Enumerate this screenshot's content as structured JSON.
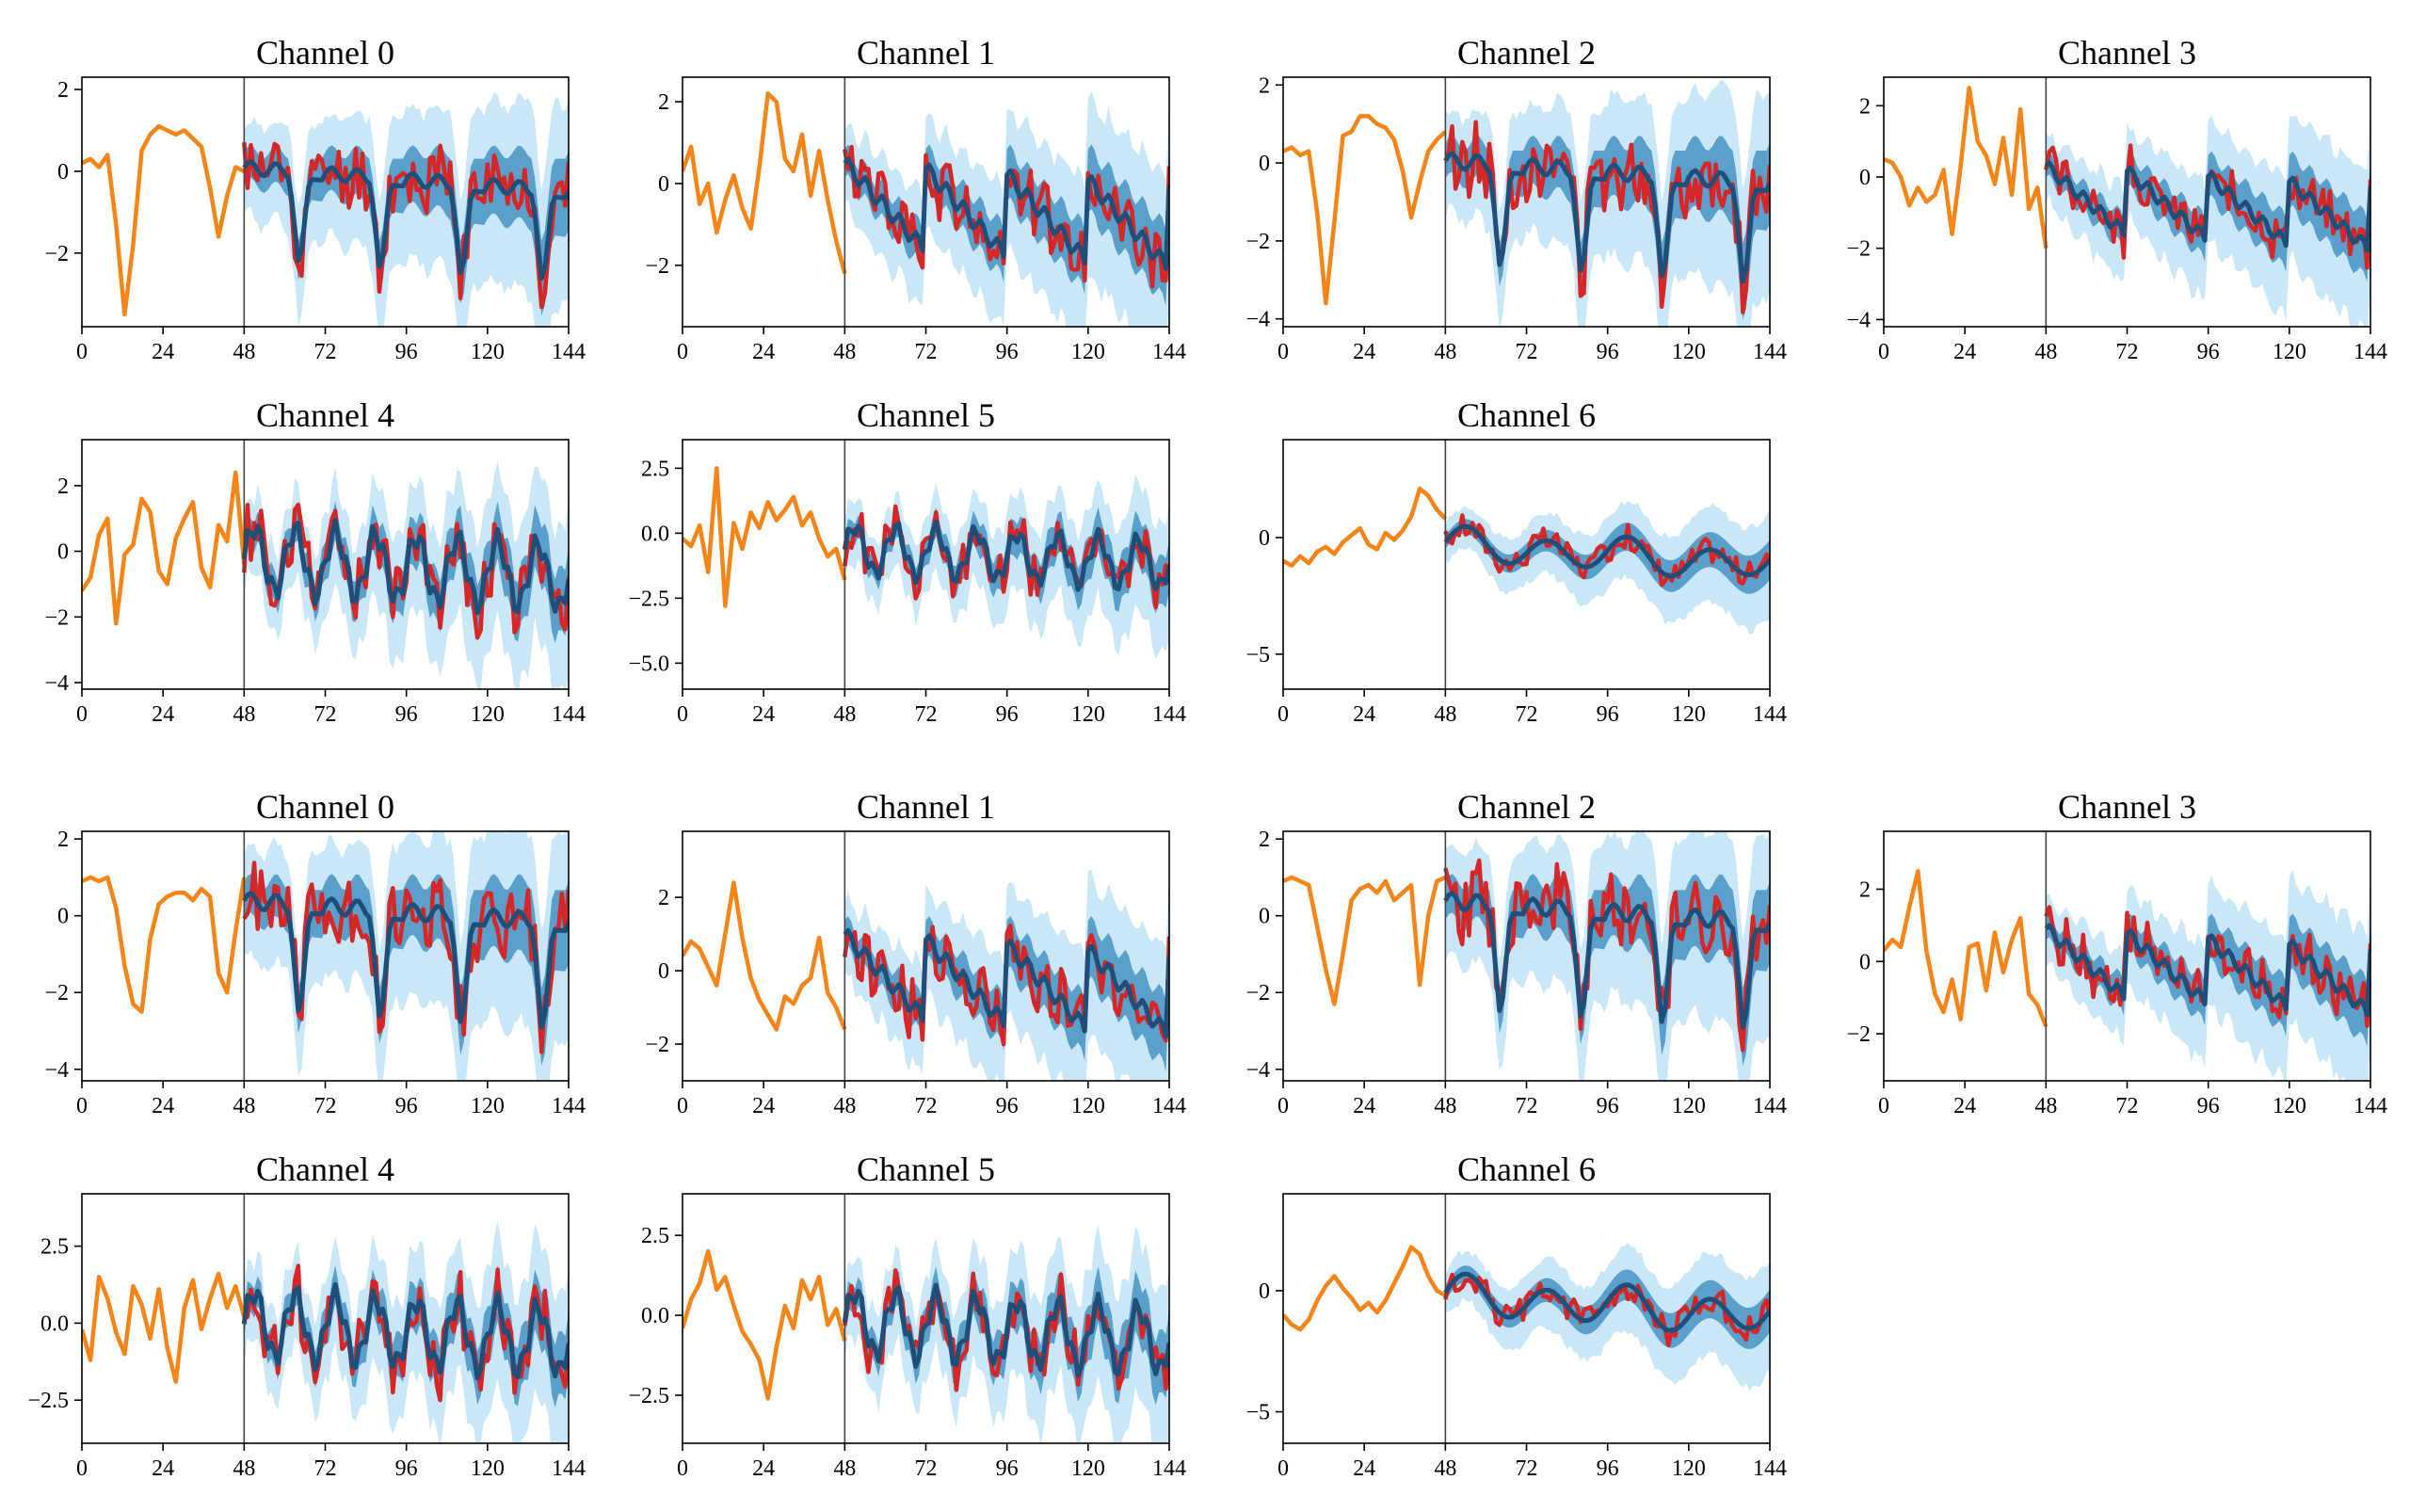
{
  "figure": {
    "description_text": "",
    "colors": {
      "history": "#f58518",
      "ground_truth": "#d62728",
      "median": "#1f4e79",
      "band_50": "#5b9fcb",
      "band_90": "#c9e7f6",
      "divider": "#444444"
    },
    "x_ticks": [
      0,
      24,
      48,
      72,
      96,
      120,
      144
    ],
    "history_end": 48
  },
  "chart_data": [
    {
      "type": "line",
      "title": "Channel 0",
      "group": 1,
      "xlim": [
        0,
        144
      ],
      "ylim": [
        -3.8,
        2.3
      ],
      "yticks": [
        -2,
        0,
        2
      ],
      "ytick_labels": [
        "−2",
        "0",
        "2"
      ],
      "seed": 11,
      "shape": "square",
      "amp": 1.1,
      "offset": -0.3,
      "hist": [
        0.2,
        0.3,
        0.1,
        0.4,
        -1.3,
        -3.5,
        -1.8,
        0.5,
        0.9,
        1.1,
        1.0,
        0.9,
        1.0,
        0.8,
        0.6,
        -0.4,
        -1.6,
        -0.6,
        0.1,
        0.0
      ]
    },
    {
      "type": "line",
      "title": "Channel 1",
      "group": 1,
      "xlim": [
        0,
        144
      ],
      "ylim": [
        -3.5,
        2.6
      ],
      "yticks": [
        -2,
        0,
        2
      ],
      "ytick_labels": [
        "−2",
        "0",
        "2"
      ],
      "seed": 12,
      "shape": "saw",
      "amp": 1.0,
      "offset": -0.4,
      "hist": [
        0.3,
        0.9,
        -0.5,
        0.0,
        -1.2,
        -0.4,
        0.2,
        -0.6,
        -1.1,
        0.4,
        2.2,
        2.0,
        0.6,
        0.3,
        1.2,
        -0.3,
        0.8,
        -0.4,
        -1.4,
        -2.2
      ]
    },
    {
      "type": "line",
      "title": "Channel 2",
      "group": 1,
      "xlim": [
        0,
        144
      ],
      "ylim": [
        -4.2,
        2.2
      ],
      "yticks": [
        -4,
        -2,
        0,
        2
      ],
      "ytick_labels": [
        "−4",
        "−2",
        "0",
        "2"
      ],
      "seed": 13,
      "shape": "square",
      "amp": 1.3,
      "offset": -0.4,
      "hist": [
        0.3,
        0.4,
        0.2,
        0.3,
        -1.3,
        -3.6,
        -1.5,
        0.7,
        0.8,
        1.2,
        1.2,
        1.0,
        0.9,
        0.6,
        -0.2,
        -1.4,
        -0.5,
        0.3,
        0.6,
        0.8
      ]
    },
    {
      "type": "line",
      "title": "Channel 3",
      "group": 1,
      "xlim": [
        0,
        144
      ],
      "ylim": [
        -4.2,
        2.8
      ],
      "yticks": [
        -4,
        -2,
        0,
        2
      ],
      "ytick_labels": [
        "−4",
        "−2",
        "0",
        "2"
      ],
      "seed": 14,
      "shape": "saw",
      "amp": 0.9,
      "offset": -0.5,
      "hist": [
        0.5,
        0.4,
        0.0,
        -0.8,
        -0.3,
        -0.7,
        -0.5,
        0.2,
        -1.6,
        0.3,
        2.5,
        1.0,
        0.6,
        -0.2,
        1.1,
        -0.5,
        1.9,
        -0.9,
        -0.3,
        -2.0
      ]
    },
    {
      "type": "line",
      "title": "Channel 4",
      "group": 1,
      "xlim": [
        0,
        144
      ],
      "ylim": [
        -4.2,
        3.4
      ],
      "yticks": [
        -4,
        -2,
        0,
        2
      ],
      "ytick_labels": [
        "−4",
        "−2",
        "0",
        "2"
      ],
      "seed": 15,
      "shape": "spiky",
      "amp": 1.2,
      "offset": -0.2,
      "hist": [
        -1.2,
        -0.8,
        0.5,
        1.0,
        -2.2,
        -0.1,
        0.2,
        1.6,
        1.2,
        -0.6,
        -1.0,
        0.4,
        1.0,
        1.5,
        -0.5,
        -1.1,
        0.8,
        0.3,
        2.4,
        -0.4
      ]
    },
    {
      "type": "line",
      "title": "Channel 5",
      "group": 1,
      "xlim": [
        0,
        144
      ],
      "ylim": [
        -6.0,
        3.6
      ],
      "yticks": [
        -5.0,
        -2.5,
        0.0,
        2.5
      ],
      "ytick_labels": [
        "−5.0",
        "−2.5",
        "0.0",
        "2.5"
      ],
      "seed": 16,
      "shape": "spiky",
      "amp": 1.1,
      "offset": -0.6,
      "hist": [
        -0.2,
        -0.5,
        0.3,
        -1.5,
        2.5,
        -2.8,
        0.4,
        -0.6,
        0.8,
        0.2,
        1.2,
        0.5,
        0.9,
        1.4,
        0.3,
        0.8,
        -0.2,
        -0.9,
        -0.6,
        -1.8
      ]
    },
    {
      "type": "line",
      "title": "Channel 6",
      "group": 1,
      "xlim": [
        0,
        144
      ],
      "ylim": [
        -6.5,
        4.2
      ],
      "yticks": [
        -5,
        0
      ],
      "ytick_labels": [
        "−5",
        "0"
      ],
      "seed": 17,
      "shape": "smooth",
      "amp": 0.8,
      "offset": -0.3,
      "hist": [
        -1.0,
        -1.2,
        -0.8,
        -1.1,
        -0.6,
        -0.4,
        -0.7,
        -0.2,
        0.1,
        0.4,
        -0.3,
        -0.5,
        0.2,
        -0.1,
        0.3,
        0.9,
        2.1,
        1.8,
        1.2,
        0.8
      ]
    },
    {
      "type": "line",
      "title": "Channel 0",
      "group": 2,
      "xlim": [
        0,
        144
      ],
      "ylim": [
        -4.3,
        2.2
      ],
      "yticks": [
        -4,
        -2,
        0,
        2
      ],
      "ytick_labels": [
        "−4",
        "−2",
        "0",
        "2"
      ],
      "seed": 21,
      "shape": "square",
      "amp": 1.4,
      "offset": -0.1,
      "hist": [
        0.9,
        1.0,
        0.9,
        1.0,
        0.2,
        -1.3,
        -2.3,
        -2.5,
        -0.6,
        0.3,
        0.5,
        0.6,
        0.6,
        0.4,
        0.7,
        0.5,
        -1.5,
        -2.0,
        -0.4,
        1.0
      ]
    },
    {
      "type": "line",
      "title": "Channel 1",
      "group": 2,
      "xlim": [
        0,
        144
      ],
      "ylim": [
        -3.0,
        3.8
      ],
      "yticks": [
        -2,
        0,
        2
      ],
      "ytick_labels": [
        "−2",
        "0",
        "2"
      ],
      "seed": 22,
      "shape": "saw",
      "amp": 1.1,
      "offset": 0.0,
      "hist": [
        0.4,
        0.8,
        0.6,
        0.1,
        -0.4,
        1.0,
        2.4,
        0.9,
        -0.2,
        -0.8,
        -1.2,
        -1.6,
        -0.7,
        -0.9,
        -0.4,
        -0.2,
        0.9,
        -0.6,
        -1.0,
        -1.6
      ]
    },
    {
      "type": "line",
      "title": "Channel 2",
      "group": 2,
      "xlim": [
        0,
        144
      ],
      "ylim": [
        -4.3,
        2.2
      ],
      "yticks": [
        -4,
        -2,
        0,
        2
      ],
      "ytick_labels": [
        "−4",
        "−2",
        "0",
        "2"
      ],
      "seed": 23,
      "shape": "square",
      "amp": 1.4,
      "offset": -0.1,
      "hist": [
        0.9,
        1.0,
        0.9,
        0.8,
        -0.3,
        -1.4,
        -2.3,
        -1.0,
        0.4,
        0.7,
        0.8,
        0.6,
        0.9,
        0.4,
        0.6,
        0.8,
        -1.8,
        0.0,
        0.9,
        1.0
      ]
    },
    {
      "type": "line",
      "title": "Channel 3",
      "group": 2,
      "xlim": [
        0,
        144
      ],
      "ylim": [
        -3.3,
        3.6
      ],
      "yticks": [
        -2,
        0,
        2
      ],
      "ytick_labels": [
        "−2",
        "0",
        "2"
      ],
      "seed": 24,
      "shape": "saw",
      "amp": 0.9,
      "offset": 0.1,
      "hist": [
        0.3,
        0.6,
        0.4,
        1.5,
        2.5,
        0.3,
        -0.9,
        -1.4,
        -0.5,
        -1.6,
        0.4,
        0.5,
        -0.8,
        0.8,
        -0.3,
        0.6,
        1.2,
        -0.9,
        -1.2,
        -1.8
      ]
    },
    {
      "type": "line",
      "title": "Channel 4",
      "group": 2,
      "xlim": [
        0,
        144
      ],
      "ylim": [
        -3.9,
        4.2
      ],
      "yticks": [
        -2.5,
        0.0,
        2.5
      ],
      "ytick_labels": [
        "−2.5",
        "0.0",
        "2.5"
      ],
      "seed": 25,
      "shape": "spiky",
      "amp": 1.3,
      "offset": 0.0,
      "hist": [
        -0.2,
        -1.2,
        1.5,
        0.8,
        -0.3,
        -1.0,
        1.2,
        0.6,
        -0.5,
        1.1,
        -0.8,
        -1.9,
        0.5,
        1.4,
        -0.2,
        0.8,
        1.6,
        0.5,
        1.2,
        0.2
      ]
    },
    {
      "type": "line",
      "title": "Channel 5",
      "group": 2,
      "xlim": [
        0,
        144
      ],
      "ylim": [
        -4.0,
        3.8
      ],
      "yticks": [
        -2.5,
        0.0,
        2.5
      ],
      "ytick_labels": [
        "−2.5",
        "0.0",
        "2.5"
      ],
      "seed": 26,
      "shape": "spiky",
      "amp": 1.2,
      "offset": -0.2,
      "hist": [
        -0.4,
        0.5,
        1.0,
        2.0,
        0.8,
        1.2,
        0.3,
        -0.5,
        -0.9,
        -1.4,
        -2.6,
        -1.0,
        0.3,
        -0.4,
        1.1,
        0.5,
        1.2,
        -0.3,
        0.2,
        -0.8
      ]
    },
    {
      "type": "line",
      "title": "Channel 6",
      "group": 2,
      "xlim": [
        0,
        144
      ],
      "ylim": [
        -6.3,
        4.0
      ],
      "yticks": [
        -5,
        0
      ],
      "ytick_labels": [
        "−5",
        "0"
      ],
      "seed": 27,
      "shape": "smooth",
      "amp": 0.9,
      "offset": -0.2,
      "hist": [
        -1.0,
        -1.4,
        -1.6,
        -1.2,
        -0.4,
        0.2,
        0.6,
        0.1,
        -0.3,
        -0.8,
        -0.5,
        -0.9,
        -0.4,
        0.3,
        1.0,
        1.8,
        1.5,
        0.6,
        0.0,
        -0.2
      ]
    }
  ]
}
